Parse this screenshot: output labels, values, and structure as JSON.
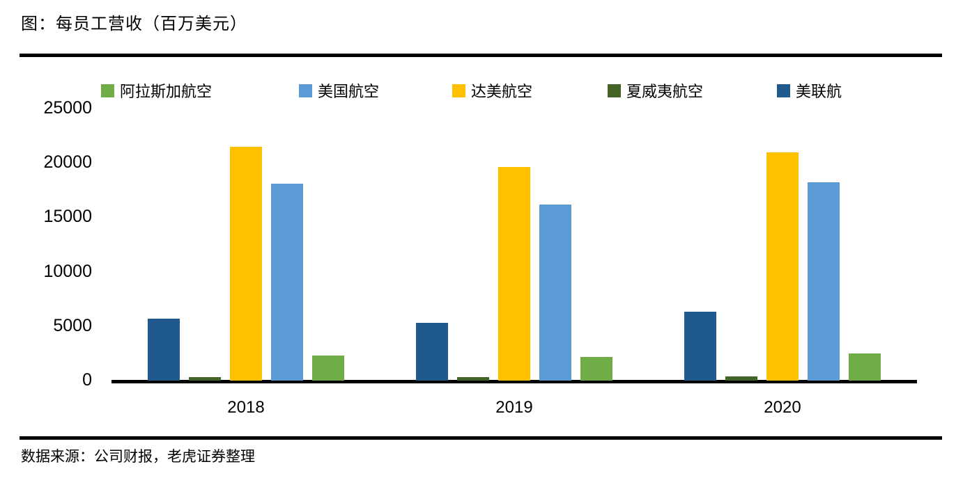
{
  "page": {
    "title": "图：每员工营收（百万美元）",
    "source": "数据来源：公司财报，老虎证券整理"
  },
  "chart_data": {
    "type": "bar",
    "title": "图：每员工营收（百万美元）",
    "categories": [
      "2018",
      "2019",
      "2020"
    ],
    "series": [
      {
        "name": "美联航",
        "color": "#20598B",
        "values": [
          5700,
          5300,
          6300
        ]
      },
      {
        "name": "夏威夷航空",
        "color": "#446327",
        "values": [
          350,
          300,
          400
        ]
      },
      {
        "name": "达美航空",
        "color": "#FFC000",
        "values": [
          21500,
          19600,
          21000
        ]
      },
      {
        "name": "美国航空",
        "color": "#5B9BD5",
        "values": [
          18100,
          16200,
          18200
        ]
      },
      {
        "name": "阿拉斯加航空",
        "color": "#70AD47",
        "values": [
          2300,
          2200,
          2500
        ]
      }
    ],
    "legend_order": [
      "阿拉斯加航空",
      "美国航空",
      "达美航空",
      "夏威夷航空",
      "美联航"
    ],
    "y_axis": {
      "min": 0,
      "max": 25000,
      "step": 5000,
      "ticks": [
        0,
        5000,
        10000,
        15000,
        20000,
        25000
      ]
    },
    "grid": false,
    "legend_position": "top",
    "axis_color": "#000000"
  }
}
